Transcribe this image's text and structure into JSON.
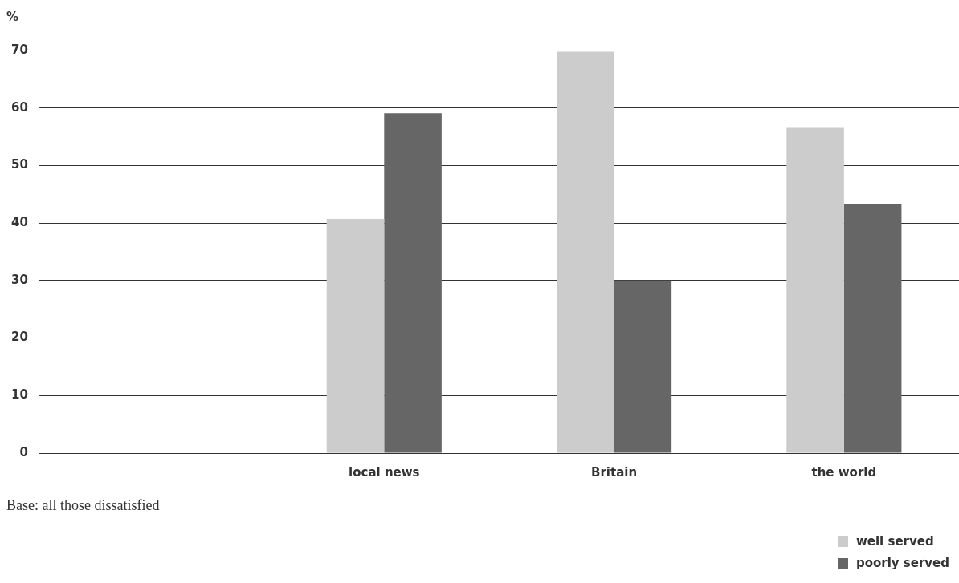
{
  "chart_data": {
    "type": "bar",
    "ylabel": "%",
    "categories": [
      null,
      "local news",
      "Britain",
      "the world"
    ],
    "series": [
      {
        "name": "well served",
        "color": "#cccccc",
        "values": [
          null,
          40.7,
          69.8,
          56.7
        ]
      },
      {
        "name": "poorly served",
        "color": "#666666",
        "values": [
          null,
          59.1,
          30,
          43.3
        ]
      }
    ],
    "ylim": [
      0,
      70
    ],
    "yticks": [
      0,
      10,
      20,
      30,
      40,
      50,
      60,
      70
    ],
    "grid": "y",
    "legend": "bottom right",
    "annotations": [
      "Base: all those dissatisfied"
    ]
  }
}
